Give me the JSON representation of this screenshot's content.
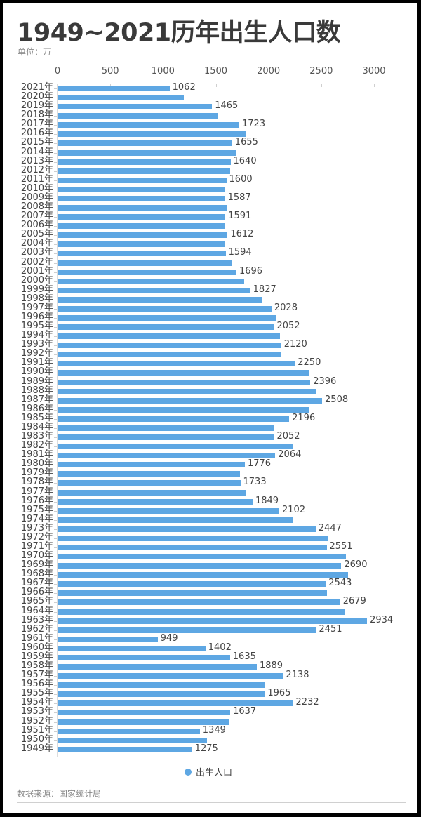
{
  "header": {
    "title": "1949~2021历年出生人口数",
    "unit": "单位：万"
  },
  "legend": {
    "label": "出生人口",
    "color": "#5ea7e3"
  },
  "footer": {
    "source": "数据来源：国家统计局"
  },
  "chart_data": {
    "type": "bar",
    "orientation": "horizontal",
    "title": "1949~2021历年出生人口数",
    "subtitle": "单位：万",
    "xlabel": "",
    "ylabel": "",
    "xlim": [
      0,
      3000
    ],
    "x_ticks": [
      0,
      500,
      1000,
      1500,
      2000,
      2500,
      3000
    ],
    "grid": false,
    "legend_position": "bottom",
    "bar_color": "#5ea7e3",
    "categories": [
      "2021年",
      "2020年",
      "2019年",
      "2018年",
      "2017年",
      "2016年",
      "2015年",
      "2014年",
      "2013年",
      "2012年",
      "2011年",
      "2010年",
      "2009年",
      "2008年",
      "2007年",
      "2006年",
      "2005年",
      "2004年",
      "2003年",
      "2002年",
      "2001年",
      "2000年",
      "1999年",
      "1998年",
      "1997年",
      "1996年",
      "1995年",
      "1994年",
      "1993年",
      "1992年",
      "1991年",
      "1990年",
      "1989年",
      "1988年",
      "1987年",
      "1986年",
      "1985年",
      "1984年",
      "1983年",
      "1982年",
      "1981年",
      "1980年",
      "1979年",
      "1978年",
      "1977年",
      "1976年",
      "1975年",
      "1974年",
      "1973年",
      "1972年",
      "1971年",
      "1970年",
      "1969年",
      "1968年",
      "1967年",
      "1966年",
      "1965年",
      "1964年",
      "1963年",
      "1962年",
      "1961年",
      "1960年",
      "1959年",
      "1958年",
      "1957年",
      "1956年",
      "1955年",
      "1954年",
      "1953年",
      "1952年",
      "1951年",
      "1950年",
      "1949年"
    ],
    "series": [
      {
        "name": "出生人口",
        "values": [
          1062,
          1200,
          1465,
          1523,
          1723,
          1786,
          1655,
          1687,
          1640,
          1635,
          1600,
          1592,
          1587,
          1608,
          1591,
          1585,
          1612,
          1593,
          1594,
          1647,
          1696,
          1771,
          1827,
          1942,
          2028,
          2067,
          2052,
          2110,
          2120,
          2125,
          2250,
          2391,
          2396,
          2457,
          2508,
          2384,
          2196,
          2050,
          2052,
          2237,
          2064,
          1776,
          1727,
          1733,
          1786,
          1849,
          2102,
          2226,
          2447,
          2566,
          2551,
          2736,
          2690,
          2757,
          2543,
          2554,
          2679,
          2729,
          2934,
          2451,
          949,
          1402,
          1635,
          1889,
          2138,
          1961,
          1965,
          2232,
          1637,
          1622,
          1349,
          1419,
          1275
        ],
        "labeled": [
          true,
          false,
          true,
          false,
          true,
          false,
          true,
          false,
          true,
          false,
          true,
          false,
          true,
          false,
          true,
          false,
          true,
          false,
          true,
          false,
          true,
          false,
          true,
          false,
          true,
          false,
          true,
          false,
          true,
          false,
          true,
          false,
          true,
          false,
          true,
          false,
          true,
          false,
          true,
          false,
          true,
          true,
          false,
          true,
          false,
          true,
          true,
          false,
          true,
          false,
          true,
          false,
          true,
          false,
          true,
          false,
          true,
          false,
          true,
          true,
          true,
          true,
          true,
          true,
          true,
          false,
          true,
          true,
          true,
          false,
          true,
          false,
          true
        ]
      }
    ]
  }
}
